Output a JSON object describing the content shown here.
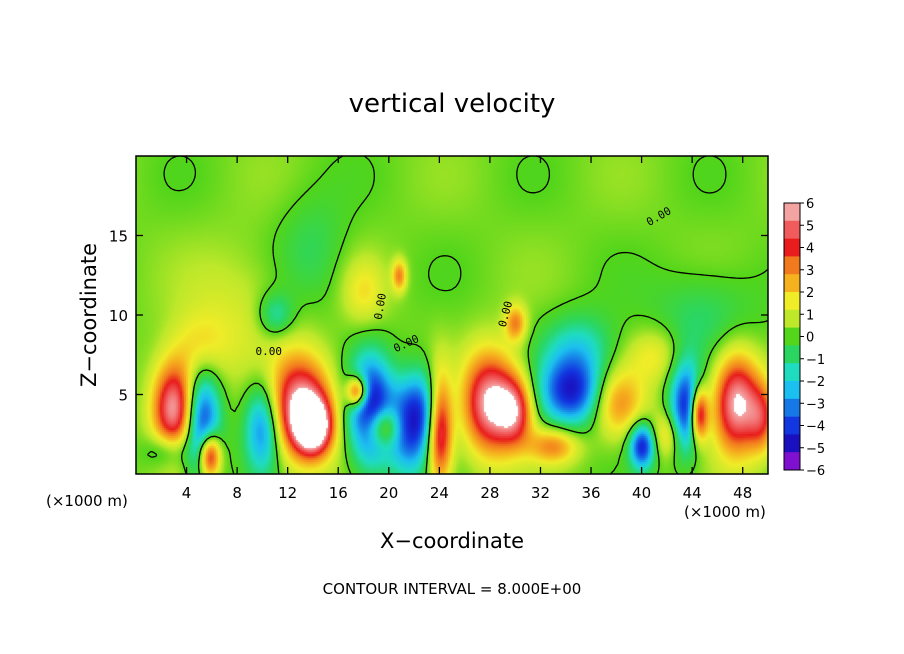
{
  "chart_data": {
    "type": "heatmap",
    "title": "vertical velocity",
    "xlabel": "X−coordinate",
    "ylabel": "Z−coordinate",
    "x_unit_left": "(×1000 m)",
    "x_unit_right": "(×1000 m)",
    "xlim": [
      0,
      50
    ],
    "ylim": [
      0,
      20
    ],
    "x_ticks": [
      4,
      8,
      12,
      16,
      20,
      24,
      28,
      32,
      36,
      40,
      44,
      48
    ],
    "x_tick_labels": [
      "4",
      "8",
      "12",
      "16",
      "20",
      "24",
      "28",
      "32",
      "36",
      "40",
      "44",
      "48"
    ],
    "y_ticks": [
      5,
      10,
      15
    ],
    "y_tick_labels": [
      "5",
      "10",
      "15"
    ],
    "colorbar": {
      "min": -6,
      "max": 6,
      "labels": [
        "6",
        "5",
        "4",
        "3",
        "2",
        "1",
        "0",
        "−1",
        "−2",
        "−3",
        "−4",
        "−5",
        "−6"
      ],
      "colors": [
        "#f4a3a3",
        "#f15b5b",
        "#e81c1c",
        "#f27a1e",
        "#f6b21e",
        "#f0ec28",
        "#bfe82a",
        "#52d51a",
        "#2bd660",
        "#1fdcc0",
        "#1cc0f0",
        "#1678e6",
        "#1236e0",
        "#1a10c0",
        "#8010d0"
      ]
    },
    "contour_label": "0.00",
    "features": [
      {
        "x": 3.0,
        "z": 4.2,
        "w": 6,
        "sx": 1.2,
        "sz": 2.0
      },
      {
        "x": 5.2,
        "z": 3.2,
        "w": -5,
        "sx": 1.0,
        "sz": 2.3
      },
      {
        "x": 5.8,
        "z": 1.2,
        "w": 6,
        "sx": 0.6,
        "sz": 1.0
      },
      {
        "x": 2.5,
        "z": 1.5,
        "w": -2,
        "sx": 1.2,
        "sz": 0.8
      },
      {
        "x": 13.0,
        "z": 4.2,
        "w": 6,
        "sx": 1.7,
        "sz": 2.2
      },
      {
        "x": 14.0,
        "z": 3.0,
        "w": 6,
        "sx": 1.0,
        "sz": 1.2
      },
      {
        "x": 10.0,
        "z": 3.0,
        "w": -4,
        "sx": 1.0,
        "sz": 2.0
      },
      {
        "x": 18.5,
        "z": 4.0,
        "w": -6,
        "sx": 1.2,
        "sz": 2.3
      },
      {
        "x": 19.5,
        "z": 3.0,
        "w": 4,
        "sx": 1.0,
        "sz": 0.9
      },
      {
        "x": 17.5,
        "z": 5.2,
        "w": 6,
        "sx": 0.6,
        "sz": 0.7
      },
      {
        "x": 21.5,
        "z": 2.8,
        "w": -4,
        "sx": 1.2,
        "sz": 2.0
      },
      {
        "x": 24.0,
        "z": 3.0,
        "w": 6,
        "sx": 0.7,
        "sz": 2.4
      },
      {
        "x": 23.0,
        "z": 4.3,
        "w": -3,
        "sx": 1.3,
        "sz": 1.8
      },
      {
        "x": 28.0,
        "z": 4.5,
        "w": 6,
        "sx": 1.5,
        "sz": 2.2
      },
      {
        "x": 30.0,
        "z": 4.0,
        "w": 4,
        "sx": 1.0,
        "sz": 1.5
      },
      {
        "x": 34.5,
        "z": 5.2,
        "w": -5,
        "sx": 1.8,
        "sz": 1.5
      },
      {
        "x": 33.0,
        "z": 1.8,
        "w": 3,
        "sx": 1.4,
        "sz": 0.8
      },
      {
        "x": 38.0,
        "z": 4.5,
        "w": 3,
        "sx": 1.5,
        "sz": 1.5
      },
      {
        "x": 40.0,
        "z": 1.8,
        "w": -5,
        "sx": 0.7,
        "sz": 1.0
      },
      {
        "x": 43.5,
        "z": 4.2,
        "w": -5,
        "sx": 0.9,
        "sz": 2.0
      },
      {
        "x": 44.5,
        "z": 3.8,
        "w": 6,
        "sx": 0.5,
        "sz": 1.2
      },
      {
        "x": 42.0,
        "z": 2.5,
        "w": 2,
        "sx": 0.8,
        "sz": 1.0
      },
      {
        "x": 47.5,
        "z": 4.5,
        "w": 6,
        "sx": 1.3,
        "sz": 2.2
      },
      {
        "x": 49.5,
        "z": 3.5,
        "w": 3,
        "sx": 0.8,
        "sz": 1.5
      },
      {
        "x": 20.8,
        "z": 12.5,
        "w": 3,
        "sx": 0.4,
        "sz": 0.7
      },
      {
        "x": 8.0,
        "z": 10.0,
        "w": 1,
        "sx": 3.0,
        "sz": 3.0
      },
      {
        "x": 5.0,
        "z": 8.0,
        "w": 1.5,
        "sx": 1.5,
        "sz": 1.5
      },
      {
        "x": 11.0,
        "z": 10.0,
        "w": -2,
        "sx": 1.0,
        "sz": 1.0
      },
      {
        "x": 14.0,
        "z": 14.0,
        "w": -1,
        "sx": 2.0,
        "sz": 2.5
      },
      {
        "x": 18.0,
        "z": 11.5,
        "w": 1.5,
        "sx": 1.2,
        "sz": 1.5
      },
      {
        "x": 30.0,
        "z": 9.5,
        "w": 3,
        "sx": 0.6,
        "sz": 0.8
      },
      {
        "x": 35.0,
        "z": 8.0,
        "w": -2,
        "sx": 2.0,
        "sz": 1.5
      },
      {
        "x": 41.0,
        "z": 7.5,
        "w": 1.5,
        "sx": 1.5,
        "sz": 1.2
      },
      {
        "x": 45.0,
        "z": 10.0,
        "w": -1.2,
        "sx": 3.0,
        "sz": 2.0
      }
    ]
  },
  "footer": {
    "contour_interval_label": "CONTOUR INTERVAL = 8.000E+00"
  }
}
